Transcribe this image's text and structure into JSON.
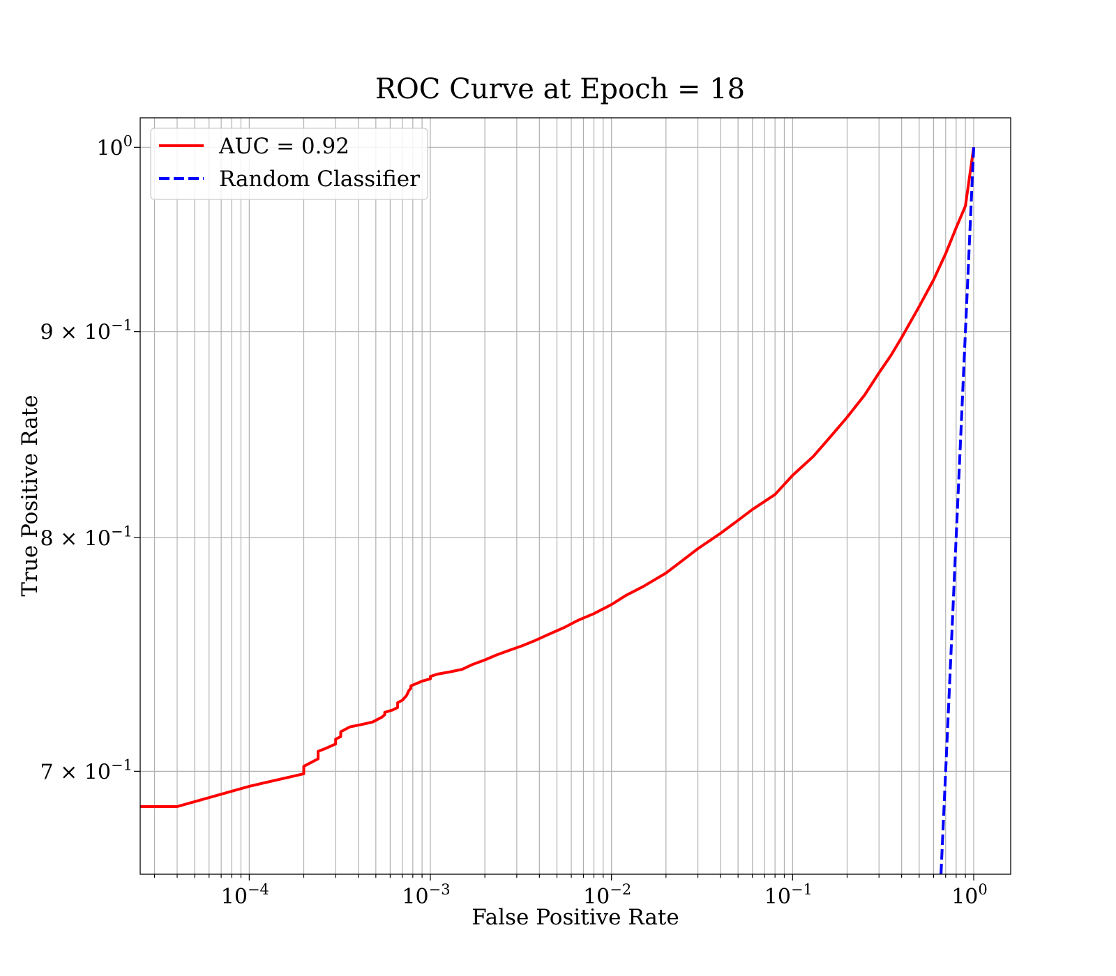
{
  "chart_data": {
    "type": "line",
    "title": "ROC Curve at Epoch = 18",
    "xlabel": "False Positive Rate",
    "ylabel": "True Positive Rate",
    "xscale": "log",
    "yscale": "log",
    "xlim": [
      2.5e-05,
      1.6
    ],
    "ylim": [
      0.66,
      1.017
    ],
    "grid": true,
    "grid_minor": true,
    "legend_position": "upper-left",
    "x_ticks": [
      {
        "value": 0.0001,
        "base": "10",
        "exp": "−4"
      },
      {
        "value": 0.001,
        "base": "10",
        "exp": "−3"
      },
      {
        "value": 0.01,
        "base": "10",
        "exp": "−2"
      },
      {
        "value": 0.1,
        "base": "10",
        "exp": "−1"
      },
      {
        "value": 1,
        "base": "10",
        "exp": "0"
      }
    ],
    "y_ticks": [
      {
        "value": 1.0,
        "base": "10",
        "exp": "0"
      },
      {
        "value": 0.9,
        "base": "9 × 10",
        "exp": "−1"
      },
      {
        "value": 0.8,
        "base": "8 × 10",
        "exp": "−1"
      },
      {
        "value": 0.7,
        "base": "7 × 10",
        "exp": "−1"
      }
    ],
    "series": [
      {
        "name": "AUC = 0.92",
        "color": "#ff0000",
        "style": "solid",
        "x": [
          2.5e-05,
          4e-05,
          0.0001,
          0.0002,
          0.0002,
          0.00024,
          0.00024,
          0.00026,
          0.0003,
          0.0003,
          0.00032,
          0.00032,
          0.00036,
          0.00042,
          0.00048,
          0.00048,
          0.00054,
          0.00056,
          0.00056,
          0.00062,
          0.00066,
          0.00066,
          0.0007,
          0.00074,
          0.00076,
          0.00078,
          0.00078,
          0.0009,
          0.001,
          0.001,
          0.0011,
          0.0013,
          0.0015,
          0.0017,
          0.002,
          0.0023,
          0.0027,
          0.0032,
          0.0037,
          0.0045,
          0.0055,
          0.0065,
          0.008,
          0.01,
          0.012,
          0.015,
          0.02,
          0.025,
          0.03,
          0.04,
          0.05,
          0.06,
          0.08,
          0.1,
          0.13,
          0.16,
          0.2,
          0.25,
          0.3,
          0.35,
          0.4,
          0.5,
          0.6,
          0.7,
          0.8,
          0.9,
          1.0
        ],
        "y": [
          0.686,
          0.686,
          0.694,
          0.699,
          0.702,
          0.705,
          0.708,
          0.709,
          0.711,
          0.713,
          0.714,
          0.716,
          0.718,
          0.719,
          0.72,
          0.72,
          0.722,
          0.723,
          0.724,
          0.725,
          0.726,
          0.728,
          0.729,
          0.731,
          0.733,
          0.734,
          0.735,
          0.737,
          0.738,
          0.739,
          0.74,
          0.741,
          0.742,
          0.744,
          0.746,
          0.748,
          0.75,
          0.752,
          0.754,
          0.757,
          0.76,
          0.763,
          0.766,
          0.77,
          0.774,
          0.778,
          0.784,
          0.79,
          0.795,
          0.802,
          0.808,
          0.813,
          0.82,
          0.829,
          0.838,
          0.847,
          0.857,
          0.868,
          0.879,
          0.888,
          0.897,
          0.913,
          0.927,
          0.941,
          0.955,
          0.967,
          1.0
        ]
      },
      {
        "name": "Random Classifier",
        "color": "#0000ff",
        "style": "dashed",
        "x": [
          0.66,
          0.7,
          0.75,
          0.8,
          0.85,
          0.9,
          0.95,
          1.0
        ],
        "y": [
          0.66,
          0.7,
          0.75,
          0.8,
          0.85,
          0.9,
          0.95,
          1.0
        ]
      }
    ]
  }
}
